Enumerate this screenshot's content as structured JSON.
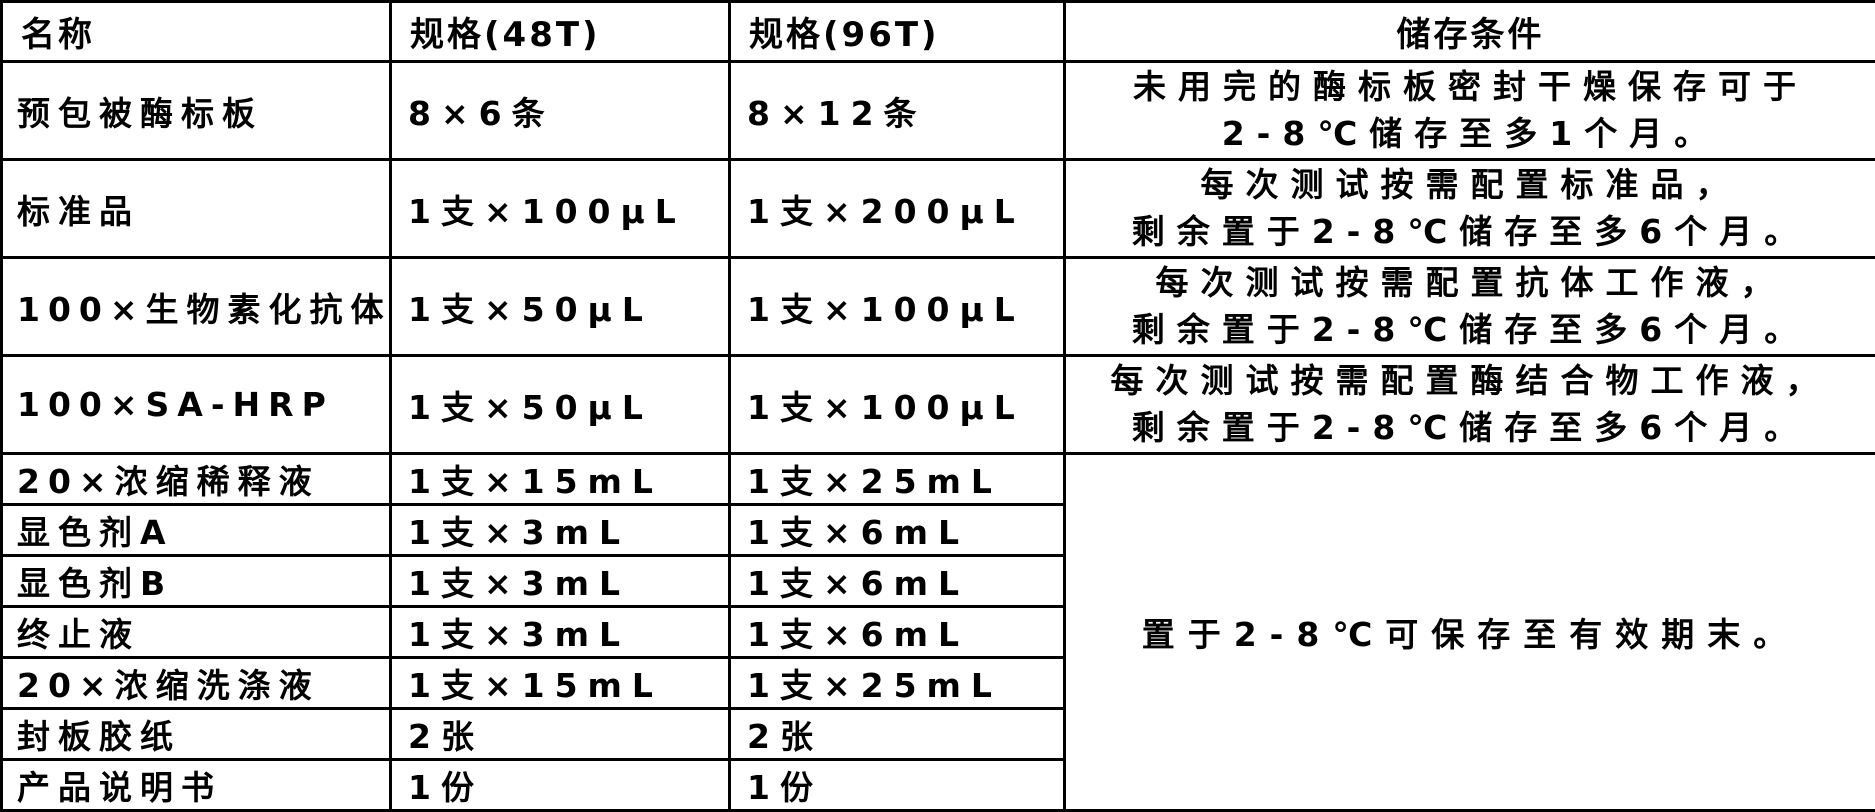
{
  "table": {
    "headers": {
      "name": "名称",
      "spec48": "规格(48T)",
      "spec96": "规格(96T)",
      "storage": "储存条件"
    },
    "rows": [
      {
        "name": "预包被酶标板",
        "spec48": "8×6条",
        "spec96": "8×12条",
        "storage_lines": [
          "未用完的酶标板密封干燥保存可于",
          "2-8℃储存至多1个月。"
        ]
      },
      {
        "name": "标准品",
        "spec48": "1支×100µL",
        "spec96": "1支×200µL",
        "storage_lines": [
          "每次测试按需配置标准品，",
          "剩余置于2-8℃储存至多6个月。"
        ]
      },
      {
        "name": "100×生物素化抗体",
        "spec48": "1支×50µL",
        "spec96": "1支×100µL",
        "storage_lines": [
          "每次测试按需配置抗体工作液，",
          "剩余置于2-8℃储存至多6个月。"
        ]
      },
      {
        "name": "100×SA-HRP",
        "spec48": "1支×50µL",
        "spec96": "1支×100µL",
        "storage_lines": [
          "每次测试按需配置酶结合物工作液，",
          "剩余置于2-8℃储存至多6个月。"
        ]
      },
      {
        "name": "20×浓缩稀释液",
        "spec48": "1支×15mL",
        "spec96": "1支×25mL"
      },
      {
        "name": "显色剂A",
        "spec48": "1支×3mL",
        "spec96": "1支×6mL"
      },
      {
        "name": "显色剂B",
        "spec48": "1支×3mL",
        "spec96": "1支×6mL"
      },
      {
        "name": "终止液",
        "spec48": "1支×3mL",
        "spec96": "1支×6mL"
      },
      {
        "name": "20×浓缩洗涤液",
        "spec48": "1支×15mL",
        "spec96": "1支×25mL"
      },
      {
        "name": "封板胶纸",
        "spec48": "2张",
        "spec96": "2张"
      },
      {
        "name": "产品说明书",
        "spec48": "1份",
        "spec96": "1份"
      }
    ],
    "merged_storage": "置于2-8℃可保存至有效期末。",
    "colors": {
      "border": "#000000",
      "background": "#ffffff",
      "text": "#000000"
    }
  }
}
